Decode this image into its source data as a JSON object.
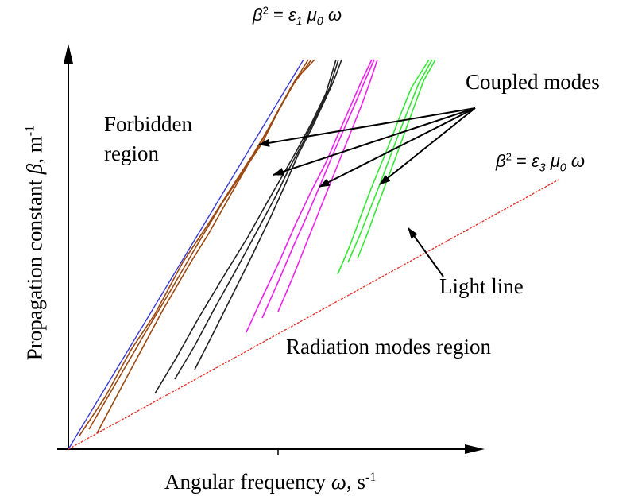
{
  "labels": {
    "top_equation": {
      "beta": "β",
      "exp": "2",
      "eq": " = ",
      "eps": "ε",
      "eps_sub": "1",
      "mu": " μ",
      "mu_sub": "0",
      "omega": " ω"
    },
    "right_equation": {
      "beta": "β",
      "exp": "2",
      "eq": " = ",
      "eps": "ε",
      "eps_sub": "3",
      "mu": " μ",
      "mu_sub": "0",
      "omega": " ω"
    },
    "forbidden_line1": "Forbidden",
    "forbidden_line2": "region",
    "coupled_modes": "Coupled modes",
    "light_line": "Light line",
    "radiation": "Radiation modes region",
    "x_axis": {
      "text": "Angular frequency ",
      "symbol": "ω",
      "unit": ", s",
      "exp": "-1"
    },
    "y_axis": {
      "text": "Propagation constant ",
      "symbol": "β",
      "unit": ", m",
      "exp": "-1"
    }
  },
  "colors": {
    "axes": "#000000",
    "upper_line": "#3a3ad8",
    "light_line": "#e8352f",
    "mode_group_1": "#9c4a12",
    "mode_group_2": "#222222",
    "mode_group_3": "#ee22ee",
    "mode_group_4": "#33e833",
    "arrows": "#000000"
  }
}
